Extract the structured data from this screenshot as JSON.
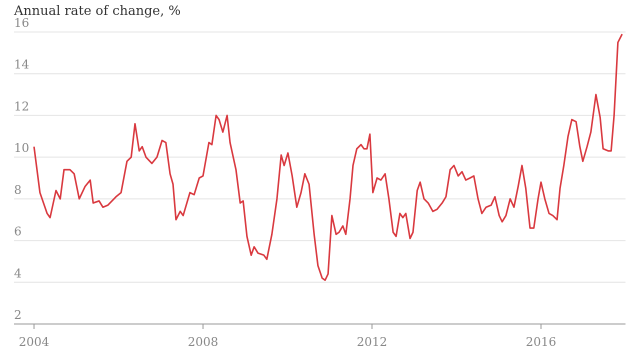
{
  "chart_data": {
    "type": "line",
    "title": "Annual rate of change, %",
    "series": [
      {
        "name": null,
        "color": "#d9393f",
        "x": [
          2004.0,
          2004.14,
          2004.31,
          2004.38,
          2004.52,
          2004.62,
          2004.71,
          2004.85,
          2004.95,
          2005.07,
          2005.21,
          2005.33,
          2005.4,
          2005.54,
          2005.63,
          2005.75,
          2005.94,
          2006.06,
          2006.2,
          2006.3,
          2006.39,
          2006.49,
          2006.56,
          2006.65,
          2006.79,
          2006.91,
          2007.03,
          2007.12,
          2007.22,
          2007.29,
          2007.36,
          2007.46,
          2007.53,
          2007.69,
          2007.79,
          2007.91,
          2008.0,
          2008.14,
          2008.21,
          2008.31,
          2008.38,
          2008.47,
          2008.57,
          2008.64,
          2008.78,
          2008.88,
          2008.95,
          2009.04,
          2009.14,
          2009.21,
          2009.3,
          2009.44,
          2009.51,
          2009.63,
          2009.75,
          2009.85,
          2009.92,
          2010.01,
          2010.11,
          2010.22,
          2010.32,
          2010.41,
          2010.51,
          2010.63,
          2010.72,
          2010.82,
          2010.89,
          2010.96,
          2011.05,
          2011.15,
          2011.22,
          2011.31,
          2011.38,
          2011.48,
          2011.55,
          2011.64,
          2011.74,
          2011.81,
          2011.88,
          2011.95,
          2012.02,
          2012.12,
          2012.21,
          2012.31,
          2012.4,
          2012.5,
          2012.57,
          2012.66,
          2012.73,
          2012.8,
          2012.9,
          2012.97,
          2013.07,
          2013.14,
          2013.23,
          2013.33,
          2013.44,
          2013.54,
          2013.66,
          2013.75,
          2013.85,
          2013.94,
          2014.04,
          2014.13,
          2014.22,
          2014.32,
          2014.41,
          2014.51,
          2014.6,
          2014.7,
          2014.82,
          2014.91,
          2015.01,
          2015.08,
          2015.17,
          2015.27,
          2015.36,
          2015.46,
          2015.55,
          2015.64,
          2015.74,
          2015.83,
          2015.93,
          2016.0,
          2016.09,
          2016.19,
          2016.28,
          2016.38,
          2016.45,
          2016.54,
          2016.64,
          2016.73,
          2016.83,
          2016.92,
          2016.99,
          2017.09,
          2017.18,
          2017.3,
          2017.4,
          2017.47,
          2017.59,
          2017.66,
          2017.73,
          2017.82,
          2017.92
        ],
        "values": [
          10.5,
          8.3,
          7.3,
          7.1,
          8.4,
          8.0,
          9.4,
          9.4,
          9.2,
          8.0,
          8.6,
          8.9,
          7.8,
          7.9,
          7.6,
          7.7,
          8.1,
          8.3,
          9.8,
          10.0,
          11.6,
          10.3,
          10.5,
          10.0,
          9.7,
          10.0,
          10.8,
          10.7,
          9.2,
          8.7,
          7.0,
          7.4,
          7.2,
          8.3,
          8.2,
          9.0,
          9.1,
          10.7,
          10.6,
          12.0,
          11.8,
          11.2,
          12.0,
          10.7,
          9.4,
          7.8,
          7.9,
          6.2,
          5.3,
          5.7,
          5.4,
          5.3,
          5.1,
          6.3,
          8.0,
          10.1,
          9.6,
          10.2,
          9.1,
          7.6,
          8.3,
          9.2,
          8.7,
          6.3,
          4.8,
          4.2,
          4.1,
          4.4,
          7.2,
          6.3,
          6.4,
          6.7,
          6.3,
          8.0,
          9.6,
          10.4,
          10.6,
          10.4,
          10.4,
          11.1,
          8.3,
          9.0,
          8.9,
          9.2,
          8.0,
          6.4,
          6.2,
          7.3,
          7.1,
          7.3,
          6.1,
          6.4,
          8.4,
          8.8,
          8.0,
          7.8,
          7.4,
          7.5,
          7.8,
          8.1,
          9.4,
          9.6,
          9.1,
          9.3,
          8.9,
          9.0,
          9.1,
          8.0,
          7.3,
          7.6,
          7.7,
          8.1,
          7.2,
          6.9,
          7.2,
          8.0,
          7.6,
          8.6,
          9.6,
          8.5,
          6.6,
          6.6,
          8.0,
          8.8,
          8.0,
          7.3,
          7.2,
          7.0,
          8.5,
          9.6,
          11.0,
          11.8,
          11.7,
          10.5,
          9.8,
          10.5,
          11.2,
          13.0,
          11.9,
          10.4,
          10.3,
          10.3,
          12.0,
          15.5,
          15.9
        ]
      }
    ],
    "xlim": [
      2003.9,
      2018
    ],
    "xticks": [
      2004,
      2008,
      2012,
      2016
    ],
    "ylim": [
      2,
      16
    ],
    "yticks": [
      2,
      4,
      6,
      8,
      10,
      12,
      14,
      16
    ],
    "grid": true
  }
}
